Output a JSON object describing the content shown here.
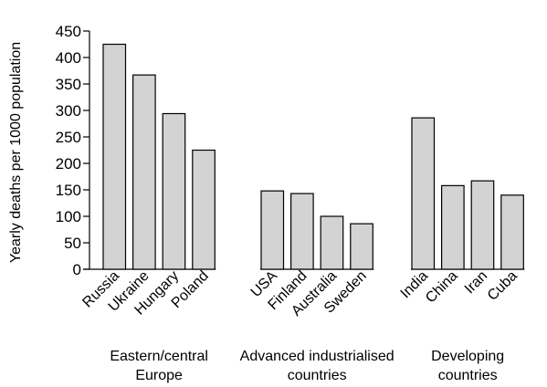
{
  "chart_data": {
    "type": "bar",
    "ylabel": "Yearly deaths per 1000 population",
    "xlabel": "",
    "ylim": [
      0,
      450
    ],
    "yticks": [
      0,
      50,
      100,
      150,
      200,
      250,
      300,
      350,
      400,
      450
    ],
    "grid": false,
    "bar_color": "#d3d3d3",
    "groups": [
      {
        "label": [
          "Eastern/central",
          "Europe"
        ],
        "categories": [
          "Russia",
          "Ukraine",
          "Hungary",
          "Poland"
        ],
        "values": [
          425,
          367,
          294,
          225
        ]
      },
      {
        "label": [
          "Advanced industrialised",
          "countries"
        ],
        "categories": [
          "USA",
          "Finland",
          "Australia",
          "Sweden"
        ],
        "values": [
          148,
          143,
          100,
          86
        ]
      },
      {
        "label": [
          "Developing",
          "countries"
        ],
        "categories": [
          "India",
          "China",
          "Iran",
          "Cuba"
        ],
        "values": [
          286,
          158,
          167,
          140
        ]
      }
    ]
  }
}
